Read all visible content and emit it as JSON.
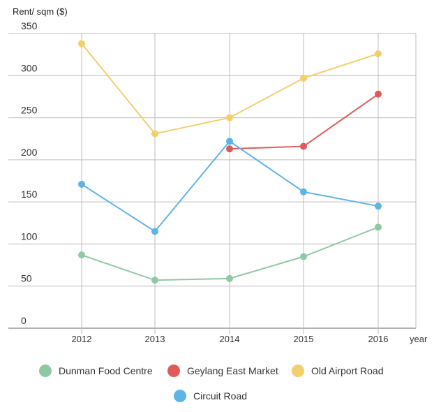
{
  "chart_data": {
    "type": "line",
    "ylabel": "Rent/ sqm ($)",
    "xlabel": "year",
    "x": [
      "2012",
      "2013",
      "2014",
      "2015",
      "2016"
    ],
    "ylim": [
      0,
      350
    ],
    "yticks": [
      "0",
      "50",
      "100",
      "150",
      "200",
      "250",
      "300",
      "350"
    ],
    "grid": true,
    "legend_position": "bottom",
    "series": [
      {
        "name": "Dunman Food Centre",
        "color": "#8fc9a3",
        "values": [
          87,
          57,
          59,
          85,
          120
        ]
      },
      {
        "name": "Geylang East Market",
        "color": "#e05a5a",
        "values": [
          null,
          null,
          213,
          216,
          278
        ]
      },
      {
        "name": "Old Airport Road",
        "color": "#f2cf6b",
        "values": [
          338,
          231,
          250,
          297,
          326
        ]
      },
      {
        "name": "Circuit Road",
        "color": "#5db5e6",
        "values": [
          171,
          115,
          222,
          162,
          145
        ]
      }
    ]
  }
}
